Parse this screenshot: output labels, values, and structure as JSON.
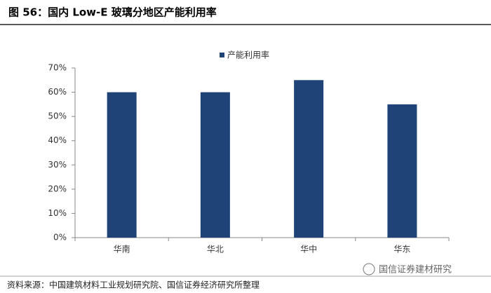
{
  "chart_data": {
    "type": "bar",
    "title": "图 56：国内 Low-E 玻璃分地区产能利用率",
    "categories": [
      "华南",
      "华北",
      "华中",
      "华东"
    ],
    "series": [
      {
        "name": "产能利用率",
        "color": "#1f4377",
        "values": [
          60,
          60,
          65,
          55
        ]
      }
    ],
    "ylim": [
      0,
      70
    ],
    "yticks": [
      {
        "value": 0,
        "label": "0%"
      },
      {
        "value": 10,
        "label": "10%"
      },
      {
        "value": 20,
        "label": "20%"
      },
      {
        "value": 30,
        "label": "30%"
      },
      {
        "value": 40,
        "label": "40%"
      },
      {
        "value": 50,
        "label": "50%"
      },
      {
        "value": 60,
        "label": "60%"
      },
      {
        "value": 70,
        "label": "70%"
      }
    ],
    "grid": false,
    "legend": "top",
    "source": "资料来源：中国建筑材料工业规划研究院、国信证券经济研究所整理",
    "watermark": "国信证券建材研究"
  }
}
